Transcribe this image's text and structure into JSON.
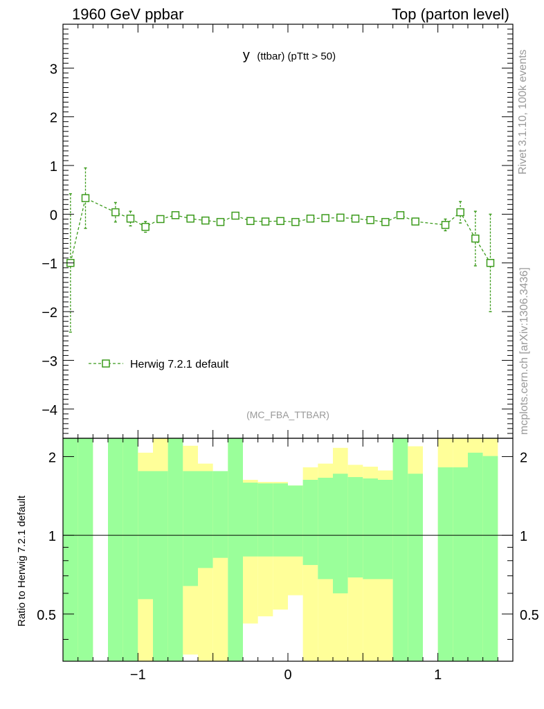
{
  "header": {
    "left": "1960 GeV ppbar",
    "right": "Top (parton level)"
  },
  "side_labels": {
    "version": "Rivet 3.1.10,  100k events",
    "source": "mcplots.cern.ch [arXiv:1306.3436]"
  },
  "colors": {
    "mc": "#3a9a1a",
    "band_inner": "#9aff9a",
    "band_outer": "#ffff99",
    "axis": "#000000",
    "watermark": "#999999"
  },
  "chart_data": [
    {
      "type": "scatter",
      "title_main": "y",
      "title_sub": "(ttbar)  (pTtt > 50)",
      "watermark": "(MC_FBA_TTBAR)",
      "xlim": [
        -1.5,
        1.5
      ],
      "ylim": [
        -4.6,
        3.9
      ],
      "yticks": [
        -4,
        -3,
        -2,
        -1,
        0,
        1,
        2,
        3
      ],
      "yticklabels": [
        "−4",
        "−3",
        "−2",
        "−1",
        "0",
        "1",
        "2",
        "3"
      ],
      "series": [
        {
          "name": "Herwig 7.2.1 default",
          "x": [
            -1.45,
            -1.35,
            -1.15,
            -1.05,
            -0.95,
            -0.85,
            -0.75,
            -0.65,
            -0.55,
            -0.45,
            -0.35,
            -0.25,
            -0.15,
            -0.05,
            0.05,
            0.15,
            0.25,
            0.35,
            0.45,
            0.55,
            0.65,
            0.75,
            0.85,
            1.05,
            1.15,
            1.25,
            1.35
          ],
          "y": [
            -1.0,
            0.33,
            0.04,
            -0.09,
            -0.26,
            -0.1,
            -0.02,
            -0.09,
            -0.13,
            -0.16,
            -0.03,
            -0.14,
            -0.15,
            -0.14,
            -0.16,
            -0.09,
            -0.08,
            -0.07,
            -0.09,
            -0.12,
            -0.16,
            -0.02,
            -0.15,
            -0.22,
            0.04,
            -0.5,
            -1.0
          ],
          "yerr": [
            1.42,
            0.62,
            0.2,
            0.15,
            0.11,
            0.06,
            0.05,
            0.05,
            0.05,
            0.05,
            0.05,
            0.05,
            0.05,
            0.05,
            0.05,
            0.05,
            0.05,
            0.05,
            0.05,
            0.05,
            0.05,
            0.05,
            0.06,
            0.12,
            0.22,
            0.56,
            1.0
          ]
        }
      ]
    },
    {
      "type": "area",
      "ylabel": "Ratio to Herwig 7.2.1 default",
      "xlim": [
        -1.5,
        1.5
      ],
      "ylim": [
        0.33,
        2.35
      ],
      "xticks": [
        -1,
        0,
        1
      ],
      "xticklabels": [
        "−1",
        "0",
        "1"
      ],
      "yticks": [
        0.5,
        1,
        2
      ],
      "yticklabels": [
        "0.5",
        "1",
        "2"
      ],
      "bins": [
        -1.5,
        -1.4,
        -1.3,
        -1.2,
        -1.1,
        -1.0,
        -0.9,
        -0.8,
        -0.7,
        -0.6,
        -0.5,
        -0.4,
        -0.3,
        -0.2,
        -0.1,
        0.0,
        0.1,
        0.2,
        0.3,
        0.4,
        0.5,
        0.6,
        0.7,
        0.8,
        0.9,
        1.0,
        1.1,
        1.2,
        1.3,
        1.4
      ],
      "inner_band": [
        [
          0.33,
          2.35
        ],
        [
          0.33,
          2.35
        ],
        null,
        [
          0.33,
          2.35
        ],
        [
          0.33,
          2.35
        ],
        [
          0.57,
          1.76
        ],
        [
          0.33,
          1.76
        ],
        [
          0.33,
          2.35
        ],
        [
          0.64,
          1.76
        ],
        [
          0.75,
          1.76
        ],
        [
          0.82,
          1.76
        ],
        [
          0.33,
          2.35
        ],
        [
          0.83,
          1.59
        ],
        [
          0.83,
          1.58
        ],
        [
          0.83,
          1.58
        ],
        [
          0.83,
          1.55
        ],
        [
          0.77,
          1.63
        ],
        [
          0.68,
          1.66
        ],
        [
          0.6,
          1.72
        ],
        [
          0.69,
          1.67
        ],
        [
          0.68,
          1.65
        ],
        [
          0.68,
          1.63
        ],
        [
          0.33,
          2.35
        ],
        [
          0.33,
          1.72
        ],
        null,
        [
          0.33,
          1.82
        ],
        [
          0.33,
          1.82
        ],
        [
          0.33,
          2.07
        ],
        [
          0.33,
          2.01
        ]
      ],
      "outer_band": [
        [
          0.33,
          2.35
        ],
        [
          0.33,
          2.35
        ],
        null,
        [
          0.33,
          2.35
        ],
        [
          0.33,
          2.35
        ],
        [
          0.33,
          2.07
        ],
        [
          0.33,
          2.35
        ],
        [
          0.33,
          2.35
        ],
        [
          0.35,
          2.2
        ],
        [
          0.33,
          1.88
        ],
        [
          0.33,
          1.75
        ],
        [
          0.33,
          2.35
        ],
        [
          0.46,
          1.63
        ],
        [
          0.49,
          1.6
        ],
        [
          0.52,
          1.6
        ],
        [
          0.59,
          1.55
        ],
        [
          0.33,
          1.82
        ],
        [
          0.33,
          1.88
        ],
        [
          0.33,
          2.16
        ],
        [
          0.33,
          1.86
        ],
        [
          0.33,
          1.83
        ],
        [
          0.33,
          1.77
        ],
        [
          0.33,
          2.35
        ],
        [
          0.33,
          2.19
        ],
        null,
        [
          0.33,
          2.35
        ],
        [
          0.33,
          2.35
        ],
        [
          0.33,
          2.35
        ],
        [
          0.33,
          2.35
        ]
      ]
    }
  ]
}
